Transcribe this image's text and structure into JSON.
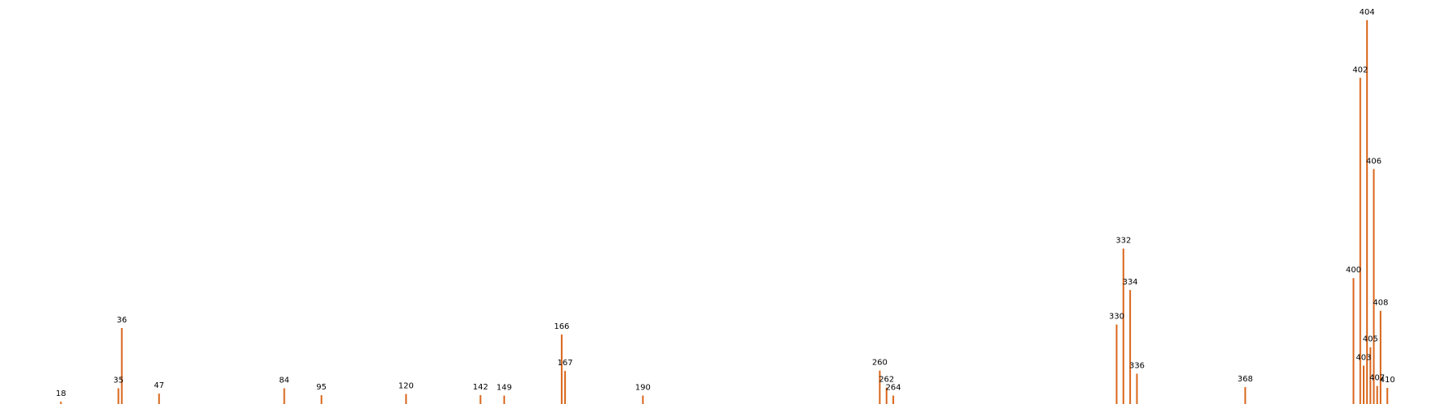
{
  "chart_data": {
    "type": "bar",
    "title": "",
    "xlabel": "",
    "ylabel": "",
    "grid": false,
    "bar_color": "#d9651a",
    "x": [
      18,
      35,
      36,
      47,
      84,
      95,
      120,
      142,
      149,
      166,
      167,
      190,
      260,
      262,
      264,
      330,
      332,
      334,
      336,
      368,
      400,
      402,
      403,
      404,
      405,
      406,
      407,
      408,
      410
    ],
    "labels": [
      "18",
      "35",
      "36",
      "47",
      "84",
      "95",
      "120",
      "142",
      "149",
      "166",
      "167",
      "190",
      "260",
      "262",
      "264",
      "330",
      "332",
      "334",
      "336",
      "368",
      "400",
      "402",
      "403",
      "404",
      "405",
      "406",
      "407",
      "408",
      "410"
    ],
    "values": [
      0.6,
      4.1,
      19.8,
      2.7,
      4.1,
      2.3,
      2.6,
      2.3,
      2.2,
      18.1,
      8.6,
      2.2,
      8.7,
      4.3,
      2.2,
      20.7,
      40.5,
      29.7,
      7.9,
      4.4,
      32.8,
      85.0,
      10.0,
      100.0,
      14.8,
      61.2,
      4.7,
      24.3,
      4.2
    ],
    "xlim": [
      0,
      430
    ],
    "ylim": [
      0,
      105
    ]
  }
}
